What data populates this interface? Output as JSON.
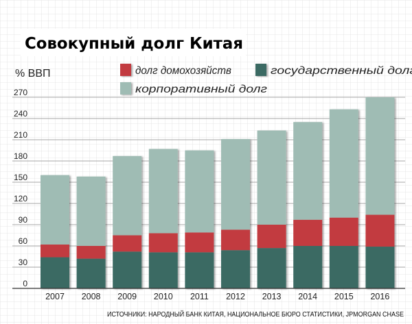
{
  "chart_data": {
    "type": "bar",
    "stacked": true,
    "title": "Совокупный долг Китая",
    "ylabel": "% ВВП",
    "xlabel": "",
    "categories": [
      "2007",
      "2008",
      "2009",
      "2010",
      "2011",
      "2012",
      "2013",
      "2014",
      "2015",
      "2016"
    ],
    "yticks": [
      0,
      30,
      60,
      90,
      120,
      150,
      180,
      210,
      240,
      270
    ],
    "ylim": [
      0,
      270
    ],
    "grid": true,
    "legend_position": "top",
    "series": [
      {
        "name": "государственный долг",
        "color": "#3a6b64",
        "values": [
          44,
          42,
          52,
          51,
          51,
          54,
          57,
          60,
          60,
          59
        ]
      },
      {
        "name": "долг домохозяйств",
        "color": "#c23b3f",
        "values": [
          18,
          18,
          23,
          27,
          28,
          29,
          33,
          37,
          40,
          45
        ]
      },
      {
        "name": "корпоративный долг",
        "color": "#9fbcb4",
        "values": [
          98,
          98,
          112,
          119,
          116,
          128,
          133,
          138,
          153,
          166
        ]
      }
    ],
    "legend_order": [
      "долг домохозяйств",
      "государственный долг",
      "корпоративный долг"
    ],
    "source": "ИСТОЧНИКИ: НАРОДНЫЙ БАНК КИТАЯ, НАЦИОНАЛЬНОЕ БЮРО СТАТИСТИКИ, JPMORGAN CHASE"
  }
}
